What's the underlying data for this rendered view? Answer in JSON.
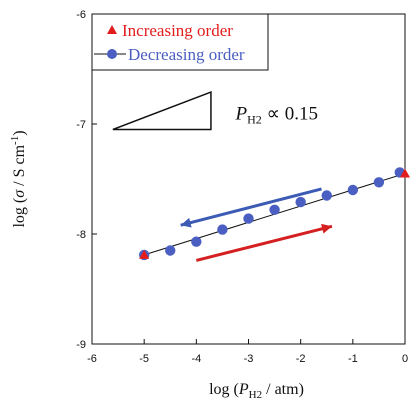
{
  "chart_data": {
    "type": "scatter",
    "xlabel_prefix": "log (",
    "xlabel_var": "P",
    "xlabel_sub": "H2",
    "xlabel_suffix": " / atm)",
    "ylabel_prefix": "log (",
    "ylabel_var": "σ",
    "ylabel_mid": " / S cm",
    "ylabel_sup": "-1",
    "ylabel_suffix": ")",
    "xlim": [
      -6,
      0
    ],
    "ylim": [
      -9,
      -6
    ],
    "xticks": [
      "-6",
      "-5",
      "-4",
      "-3",
      "-2",
      "-1",
      "0"
    ],
    "yticks": [
      "-6",
      "-7",
      "-8",
      "-9"
    ],
    "legend_position": "top-left",
    "series": [
      {
        "name": "Increasing order",
        "marker": "triangle",
        "color": "#e31c1c",
        "x": [
          -5,
          0
        ],
        "y": [
          -8.19,
          -7.45
        ]
      },
      {
        "name": "Decreasing order",
        "marker": "circle",
        "color": "#4a5fc1",
        "x": [
          -5,
          -4.5,
          -4,
          -3.5,
          -3,
          -2.5,
          -2,
          -1.5,
          -1,
          -0.5,
          -0.1
        ],
        "y": [
          -8.19,
          -8.15,
          -8.07,
          -7.96,
          -7.86,
          -7.78,
          -7.71,
          -7.65,
          -7.6,
          -7.53,
          -7.44
        ]
      }
    ],
    "fit_line": {
      "x": [
        -5,
        0
      ],
      "y": [
        -8.19,
        -7.45
      ],
      "color": "#111111"
    },
    "annotation": {
      "var": "P",
      "sub": "H2",
      "text": " ∝ 0.15"
    },
    "arrows": [
      {
        "color": "#3b5bb5",
        "direction": "left"
      },
      {
        "color": "#d42020",
        "direction": "right"
      }
    ]
  }
}
